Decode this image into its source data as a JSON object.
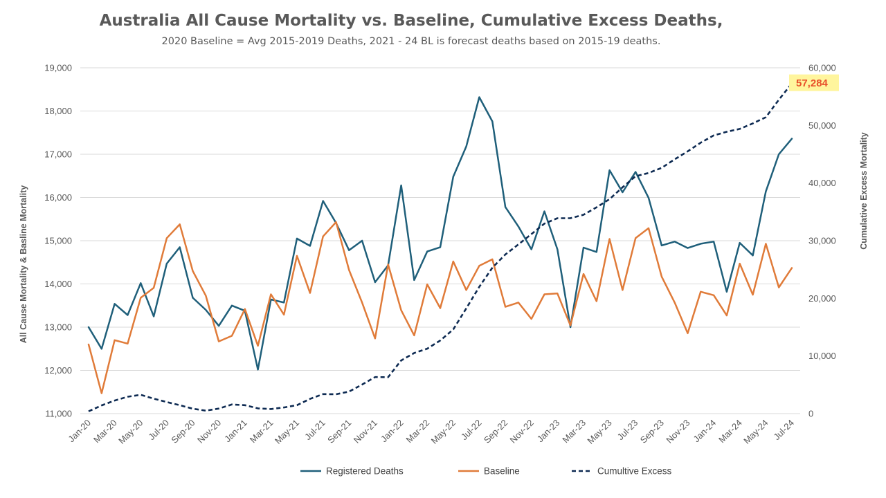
{
  "chart_data": {
    "type": "line",
    "title": "Australia All Cause Mortality vs. Baseline, Cumulative Excess Deaths,",
    "subtitle": "2020 Baseline = Avg 2015-2019 Deaths, 2021 - 24 BL is forecast deaths based on 2015-19 deaths.",
    "ylabel": "All Cause Mortality & Basline Mortality",
    "y2label": "Cumulative Excess Mortality",
    "ylim": [
      11000,
      19000
    ],
    "y_ticks": [
      "11,000",
      "12,000",
      "13,000",
      "14,000",
      "15,000",
      "16,000",
      "17,000",
      "18,000",
      "19,000"
    ],
    "y2lim": [
      0,
      60000
    ],
    "y2_ticks": [
      "0",
      "10,000",
      "20,000",
      "30,000",
      "40,000",
      "50,000",
      "60,000"
    ],
    "grid": true,
    "legend_position": "bottom",
    "x": [
      "Jan-20",
      "Feb-20",
      "Mar-20",
      "Apr-20",
      "May-20",
      "Jun-20",
      "Jul-20",
      "Aug-20",
      "Sep-20",
      "Oct-20",
      "Nov-20",
      "Dec-20",
      "Jan-21",
      "Feb-21",
      "Mar-21",
      "Apr-21",
      "May-21",
      "Jun-21",
      "Jul-21",
      "Aug-21",
      "Sep-21",
      "Oct-21",
      "Nov-21",
      "Dec-21",
      "Jan-22",
      "Feb-22",
      "Mar-22",
      "Apr-22",
      "May-22",
      "Jun-22",
      "Jul-22",
      "Aug-22",
      "Sep-22",
      "Oct-22",
      "Nov-22",
      "Dec-22",
      "Jan-23",
      "Feb-23",
      "Mar-23",
      "Apr-23",
      "May-23",
      "Jun-23",
      "Jul-23",
      "Aug-23",
      "Sep-23",
      "Oct-23",
      "Nov-23",
      "Dec-23",
      "Jan-24",
      "Feb-24",
      "Mar-24",
      "Apr-24",
      "May-24",
      "Jun-24",
      "Jul-24"
    ],
    "x_tick_labels": [
      "Jan-20",
      "Mar-20",
      "May-20",
      "Jul-20",
      "Sep-20",
      "Nov-20",
      "Jan-21",
      "Mar-21",
      "May-21",
      "Jul-21",
      "Sep-21",
      "Nov-21",
      "Jan-22",
      "Mar-22",
      "May-22",
      "Jul-22",
      "Sep-22",
      "Nov-22",
      "Jan-23",
      "Mar-23",
      "May-23",
      "Jul-23",
      "Sep-23",
      "Nov-23",
      "Jan-24",
      "Mar-24",
      "May-24",
      "Jul-24"
    ],
    "series": [
      {
        "name": "Registered Deaths",
        "axis": "left",
        "color": "#1f5f7a",
        "style": "solid",
        "values": [
          13000,
          12500,
          13540,
          13280,
          14020,
          13250,
          14470,
          14850,
          13680,
          13400,
          13030,
          13500,
          13380,
          12020,
          13640,
          13570,
          15050,
          14880,
          15920,
          15410,
          14780,
          15000,
          14040,
          14430,
          16280,
          14090,
          14750,
          14850,
          16480,
          17180,
          18320,
          17760,
          15780,
          15330,
          14800,
          15680,
          14800,
          13000,
          14840,
          14740,
          16630,
          16120,
          16590,
          15990,
          14890,
          14980,
          14830,
          14930,
          14980,
          13820,
          14950,
          14660,
          16140,
          17000,
          17360
        ]
      },
      {
        "name": "Baseline",
        "axis": "left",
        "color": "#e07b39",
        "style": "solid",
        "values": [
          12600,
          11470,
          12700,
          12620,
          13680,
          13910,
          15060,
          15380,
          14300,
          13730,
          12670,
          12800,
          13420,
          12570,
          13760,
          13290,
          14650,
          13790,
          15100,
          15430,
          14320,
          13570,
          12740,
          14450,
          13390,
          12810,
          13990,
          13440,
          14520,
          13860,
          14420,
          14570,
          13470,
          13570,
          13190,
          13760,
          13780,
          13040,
          14230,
          13600,
          15040,
          13860,
          15060,
          15290,
          14170,
          13570,
          12860,
          13820,
          13740,
          13270,
          14470,
          13750,
          14930,
          13920,
          14370
        ]
      },
      {
        "name": "Cumultive Excess",
        "axis": "right",
        "color": "#0d2a52",
        "style": "dashed",
        "values": [
          400,
          1430,
          2270,
          2930,
          3270,
          2590,
          2000,
          1470,
          850,
          520,
          880,
          1580,
          1460,
          910,
          790,
          1070,
          1470,
          2560,
          3380,
          3360,
          3820,
          5040,
          6340,
          6320,
          9230,
          10510,
          11270,
          12680,
          14610,
          18250,
          22000,
          25310,
          27610,
          29350,
          31140,
          32960,
          33900,
          33900,
          34500,
          35780,
          37210,
          39260,
          41190,
          41750,
          42640,
          44120,
          45510,
          47010,
          48270,
          48900,
          49390,
          50350,
          51420,
          54460,
          57284
        ]
      }
    ],
    "annotations": [
      {
        "text": "57,284",
        "target": "Cumultive Excess",
        "x": "Jul-24",
        "y": 57284,
        "highlight": "#fff59d",
        "color": "#e8502a"
      }
    ]
  }
}
